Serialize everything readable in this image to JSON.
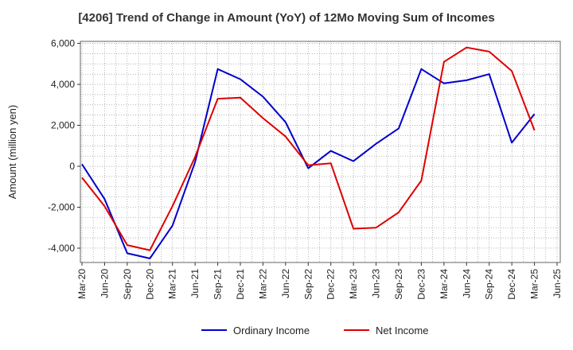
{
  "chart_data": {
    "type": "line",
    "title": "[4206]  Trend of Change in Amount (YoY) of 12Mo Moving Sum of Incomes",
    "xlabel": "",
    "ylabel": "Amount (million yen)",
    "categories": [
      "Mar-20",
      "Jun-20",
      "Sep-20",
      "Dec-20",
      "Mar-21",
      "Jun-21",
      "Sep-21",
      "Dec-21",
      "Mar-22",
      "Jun-22",
      "Sep-22",
      "Dec-22",
      "Mar-23",
      "Jun-23",
      "Sep-23",
      "Dec-23",
      "Mar-24",
      "Jun-24",
      "Sep-24",
      "Dec-24",
      "Mar-25",
      "Jun-25"
    ],
    "ylim": [
      -4700,
      6100
    ],
    "yticks": [
      6000,
      4000,
      2000,
      0,
      -2000,
      -4000
    ],
    "ytick_labels": [
      "6,000",
      "4,000",
      "2,000",
      "0",
      "-2,000",
      "-4,000"
    ],
    "grid": true,
    "legend_position": "bottom",
    "series": [
      {
        "name": "Ordinary Income",
        "color": "#0000cc",
        "values": [
          100,
          -1600,
          -4250,
          -4500,
          -2900,
          200,
          4750,
          4250,
          3400,
          2150,
          -100,
          750,
          250,
          1100,
          1850,
          4750,
          4050,
          4200,
          4500,
          1150,
          2550,
          null
        ]
      },
      {
        "name": "Net Income",
        "color": "#dd0000",
        "values": [
          -550,
          -1950,
          -3850,
          -4100,
          -1950,
          450,
          3300,
          3350,
          2350,
          1450,
          50,
          150,
          -3050,
          -3000,
          -2250,
          -700,
          5100,
          5800,
          5600,
          4650,
          1750,
          null
        ]
      }
    ]
  }
}
